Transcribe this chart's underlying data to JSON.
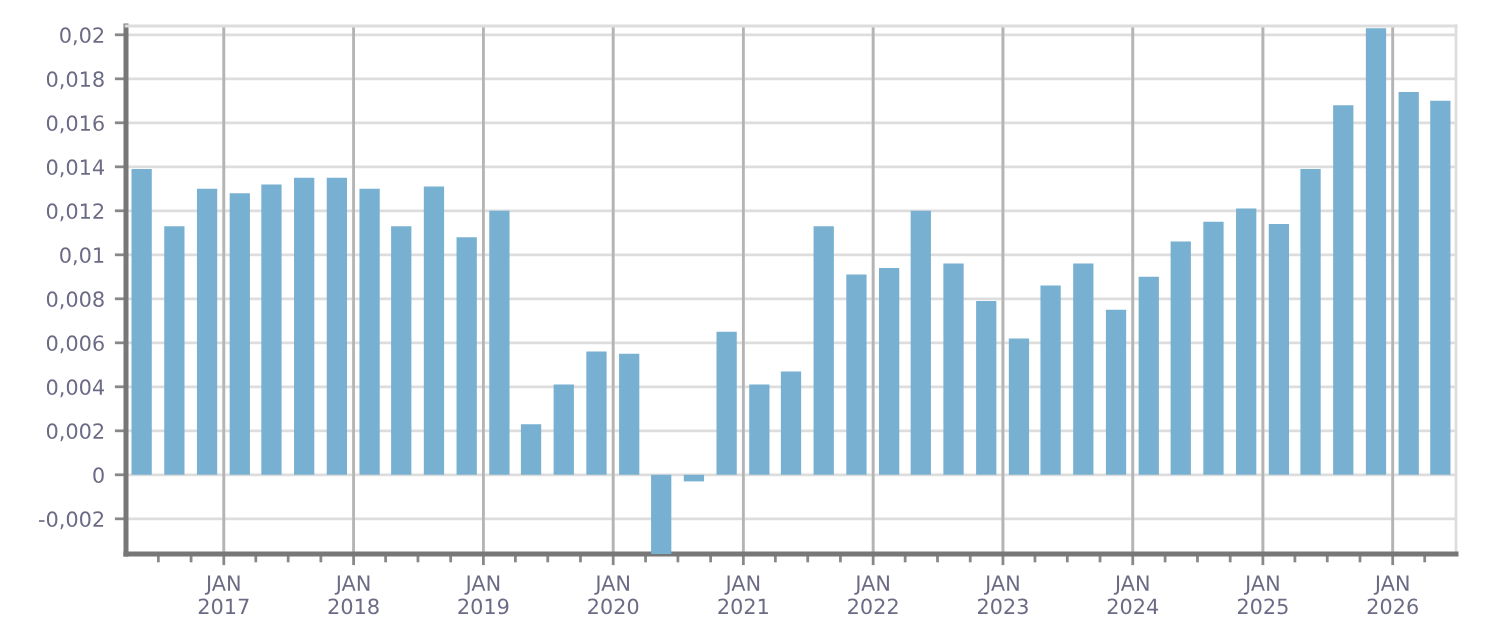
{
  "chart_data": {
    "type": "bar",
    "x": [
      "2016-05-15",
      "2016-08-15",
      "2016-11-15",
      "2017-02-15",
      "2017-05-15",
      "2017-08-15",
      "2017-11-15",
      "2018-02-15",
      "2018-05-15",
      "2018-08-15",
      "2018-11-15",
      "2019-02-15",
      "2019-05-15",
      "2019-08-15",
      "2019-11-15",
      "2020-02-15",
      "2020-05-15",
      "2020-08-15",
      "2020-11-15",
      "2021-02-15",
      "2021-05-15",
      "2021-08-15",
      "2021-11-15",
      "2022-02-15",
      "2022-05-15",
      "2022-08-15",
      "2022-11-15",
      "2023-02-15",
      "2023-05-15",
      "2023-08-15",
      "2023-11-15",
      "2024-02-15",
      "2024-05-15",
      "2024-08-15",
      "2024-11-15",
      "2025-02-15",
      "2025-05-15",
      "2025-08-15",
      "2025-11-15",
      "2026-02-15",
      "2026-05-15"
    ],
    "values": [
      0.0139,
      0.0113,
      0.013,
      0.0128,
      0.0132,
      0.0135,
      0.0135,
      0.013,
      0.0113,
      0.0131,
      0.0108,
      0.012,
      0.0023,
      0.0041,
      0.0056,
      0.0055,
      -0.0036,
      -0.0003,
      0.0065,
      0.0041,
      0.0047,
      0.0113,
      0.0091,
      0.0094,
      0.012,
      0.0096,
      0.0079,
      0.0062,
      0.0086,
      0.0096,
      0.0075,
      0.009,
      0.0106,
      0.0115,
      0.0121,
      0.0114,
      0.0139,
      0.0168,
      0.0203,
      0.0174,
      0.017
    ],
    "color": "#77b0d1",
    "xlim": [
      "2016-04-01",
      "2026-06-28"
    ],
    "xticks": [
      {
        "value": "2016-07-01",
        "label": null
      },
      {
        "value": "2016-10-01",
        "label": null
      },
      {
        "value": "2017-01-01",
        "label": "JAN\n2017"
      },
      {
        "value": "2017-04-01",
        "label": null
      },
      {
        "value": "2017-07-01",
        "label": null
      },
      {
        "value": "2017-10-01",
        "label": null
      },
      {
        "value": "2018-01-01",
        "label": "JAN\n2018"
      },
      {
        "value": "2018-04-01",
        "label": null
      },
      {
        "value": "2018-07-01",
        "label": null
      },
      {
        "value": "2018-10-01",
        "label": null
      },
      {
        "value": "2019-01-01",
        "label": "JAN\n2019"
      },
      {
        "value": "2019-04-01",
        "label": null
      },
      {
        "value": "2019-07-01",
        "label": null
      },
      {
        "value": "2019-10-01",
        "label": null
      },
      {
        "value": "2020-01-01",
        "label": "JAN\n2020"
      },
      {
        "value": "2020-04-01",
        "label": null
      },
      {
        "value": "2020-07-01",
        "label": null
      },
      {
        "value": "2020-10-01",
        "label": null
      },
      {
        "value": "2021-01-01",
        "label": "JAN\n2021"
      },
      {
        "value": "2021-04-01",
        "label": null
      },
      {
        "value": "2021-07-01",
        "label": null
      },
      {
        "value": "2021-10-01",
        "label": null
      },
      {
        "value": "2022-01-01",
        "label": "JAN\n2022"
      },
      {
        "value": "2022-04-01",
        "label": null
      },
      {
        "value": "2022-07-01",
        "label": null
      },
      {
        "value": "2022-10-01",
        "label": null
      },
      {
        "value": "2023-01-01",
        "label": "JAN\n2023"
      },
      {
        "value": "2023-04-01",
        "label": null
      },
      {
        "value": "2023-07-01",
        "label": null
      },
      {
        "value": "2023-10-01",
        "label": null
      },
      {
        "value": "2024-01-01",
        "label": "JAN\n2024"
      },
      {
        "value": "2024-04-01",
        "label": null
      },
      {
        "value": "2024-07-01",
        "label": null
      },
      {
        "value": "2024-10-01",
        "label": null
      },
      {
        "value": "2025-01-01",
        "label": "JAN\n2025"
      },
      {
        "value": "2025-04-01",
        "label": null
      },
      {
        "value": "2025-07-01",
        "label": null
      },
      {
        "value": "2025-10-01",
        "label": null
      },
      {
        "value": "2026-01-01",
        "label": "JAN\n2026"
      },
      {
        "value": "2026-04-01",
        "label": null
      }
    ],
    "ylim": [
      -0.0036,
      0.0204
    ],
    "yticks": [
      {
        "value": -0.002,
        "label": "-0,002"
      },
      0,
      {
        "value": 0.002,
        "label": "0,002"
      },
      {
        "value": 0.004,
        "label": "0,004"
      },
      {
        "value": 0.006,
        "label": "0,006"
      },
      {
        "value": 0.008,
        "label": "0,008"
      },
      {
        "value": 0.01,
        "label": "0,01"
      },
      {
        "value": 0.012,
        "label": "0,012"
      },
      {
        "value": 0.014,
        "label": "0,014"
      },
      {
        "value": 0.016,
        "label": "0,016"
      },
      {
        "value": 0.018,
        "label": "0,018"
      },
      {
        "value": 0.02,
        "label": "0,02"
      }
    ],
    "grid": true
  }
}
